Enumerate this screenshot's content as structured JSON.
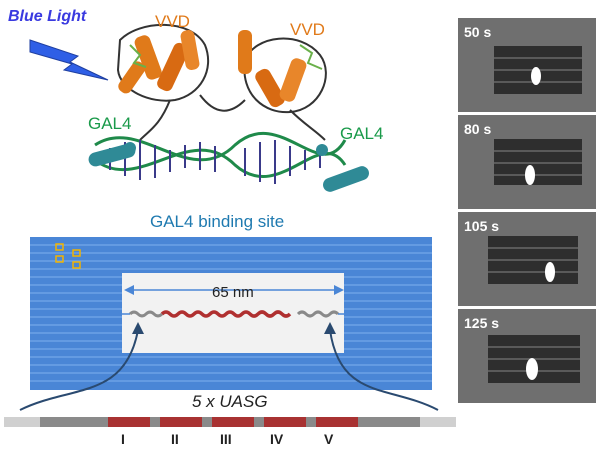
{
  "labels": {
    "blue_light": "Blue Light",
    "vvd_left": "VVD",
    "vvd_right": "VVD",
    "gal4_left": "GAL4",
    "gal4_right": "GAL4",
    "binding_site": "GAL4 binding site",
    "distance": "65 nm",
    "repeat": "5 x UASG"
  },
  "segments": [
    "I",
    "II",
    "III",
    "IV",
    "V"
  ],
  "frames": [
    {
      "time": "50 s",
      "spot_fraction": 0.52
    },
    {
      "time": "80 s",
      "spot_fraction": 0.48
    },
    {
      "time": "105 s",
      "spot_fraction": 0.62
    },
    {
      "time": "125 s",
      "spot_fraction": 0.5
    }
  ],
  "colors": {
    "blue_light": "#3a3ae0",
    "vvd": "#e07a1a",
    "gal4": "#1a9a4a",
    "binding_site": "#1f7ab0",
    "origami": "#4a86d6",
    "dna_red": "#b03030",
    "segment_red": "#a83232",
    "segment_gray": "#8a8a8a"
  }
}
